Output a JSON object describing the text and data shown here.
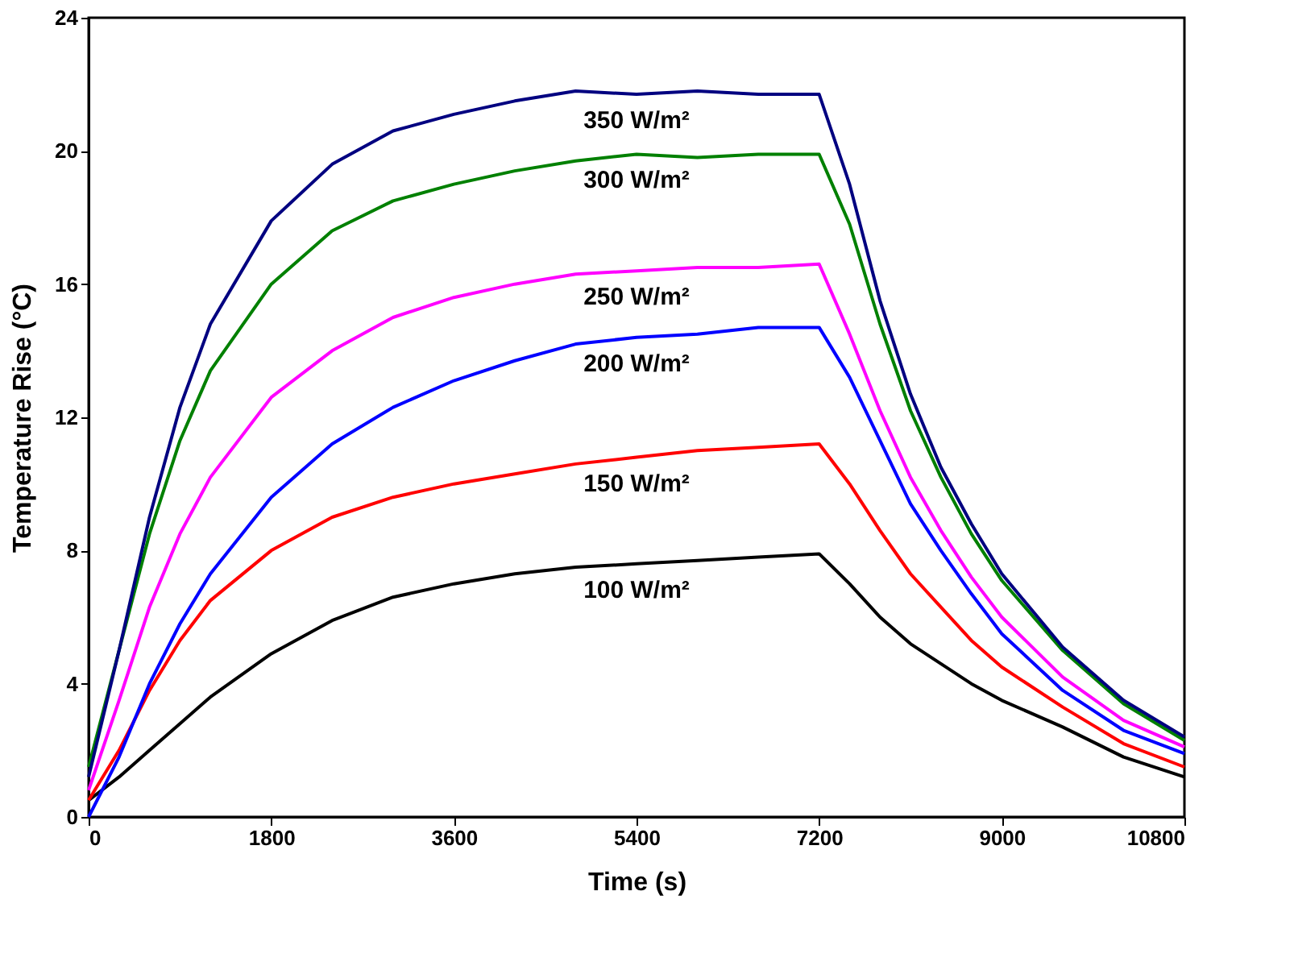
{
  "chart_data": {
    "type": "line",
    "xlabel": "Time (s)",
    "ylabel": "Temperature Rise (°C)",
    "x": [
      0,
      300,
      600,
      900,
      1200,
      1800,
      2400,
      3000,
      3600,
      4200,
      4800,
      5400,
      6000,
      6600,
      7200,
      7500,
      7800,
      8100,
      8400,
      8700,
      9000,
      9600,
      10200,
      10800
    ],
    "series": [
      {
        "name": "100 W/m²",
        "color": "#000000",
        "values": [
          0.5,
          1.2,
          2.0,
          2.8,
          3.6,
          4.9,
          5.9,
          6.6,
          7.0,
          7.3,
          7.5,
          7.6,
          7.7,
          7.8,
          7.9,
          7.0,
          6.0,
          5.2,
          4.6,
          4.0,
          3.5,
          2.7,
          1.8,
          1.2
        ]
      },
      {
        "name": "150 W/m²",
        "color": "#ff0000",
        "values": [
          0.5,
          2.0,
          3.8,
          5.3,
          6.5,
          8.0,
          9.0,
          9.6,
          10.0,
          10.3,
          10.6,
          10.8,
          11.0,
          11.1,
          11.2,
          10.0,
          8.6,
          7.3,
          6.3,
          5.3,
          4.5,
          3.3,
          2.2,
          1.5
        ]
      },
      {
        "name": "200 W/m²",
        "color": "#0000ff",
        "values": [
          0.0,
          1.8,
          4.0,
          5.8,
          7.3,
          9.6,
          11.2,
          12.3,
          13.1,
          13.7,
          14.2,
          14.4,
          14.5,
          14.7,
          14.7,
          13.2,
          11.3,
          9.4,
          8.0,
          6.7,
          5.5,
          3.8,
          2.6,
          1.9
        ]
      },
      {
        "name": "250 W/m²",
        "color": "#ff00ff",
        "values": [
          0.8,
          3.5,
          6.3,
          8.5,
          10.2,
          12.6,
          14.0,
          15.0,
          15.6,
          16.0,
          16.3,
          16.4,
          16.5,
          16.5,
          16.6,
          14.5,
          12.2,
          10.2,
          8.6,
          7.2,
          6.0,
          4.2,
          2.9,
          2.1
        ]
      },
      {
        "name": "300 W/m²",
        "color": "#008000",
        "values": [
          1.5,
          5.0,
          8.5,
          11.3,
          13.4,
          16.0,
          17.6,
          18.5,
          19.0,
          19.4,
          19.7,
          19.9,
          19.8,
          19.9,
          19.9,
          17.8,
          14.8,
          12.2,
          10.2,
          8.5,
          7.1,
          5.0,
          3.4,
          2.3
        ]
      },
      {
        "name": "350 W/m²",
        "color": "#000080",
        "values": [
          1.2,
          5.0,
          9.0,
          12.3,
          14.8,
          17.9,
          19.6,
          20.6,
          21.1,
          21.5,
          21.8,
          21.7,
          21.8,
          21.7,
          21.7,
          19.0,
          15.5,
          12.7,
          10.5,
          8.8,
          7.3,
          5.1,
          3.5,
          2.4
        ]
      }
    ],
    "xlim": [
      0,
      10800
    ],
    "xticks": [
      0,
      1800,
      3600,
      5400,
      7200,
      9000,
      10800
    ],
    "ylim": [
      0,
      24
    ],
    "yticks": [
      0,
      4,
      8,
      12,
      16,
      20,
      24
    ],
    "grid": false,
    "legend": false,
    "marker": "none",
    "line_style": "solid"
  }
}
